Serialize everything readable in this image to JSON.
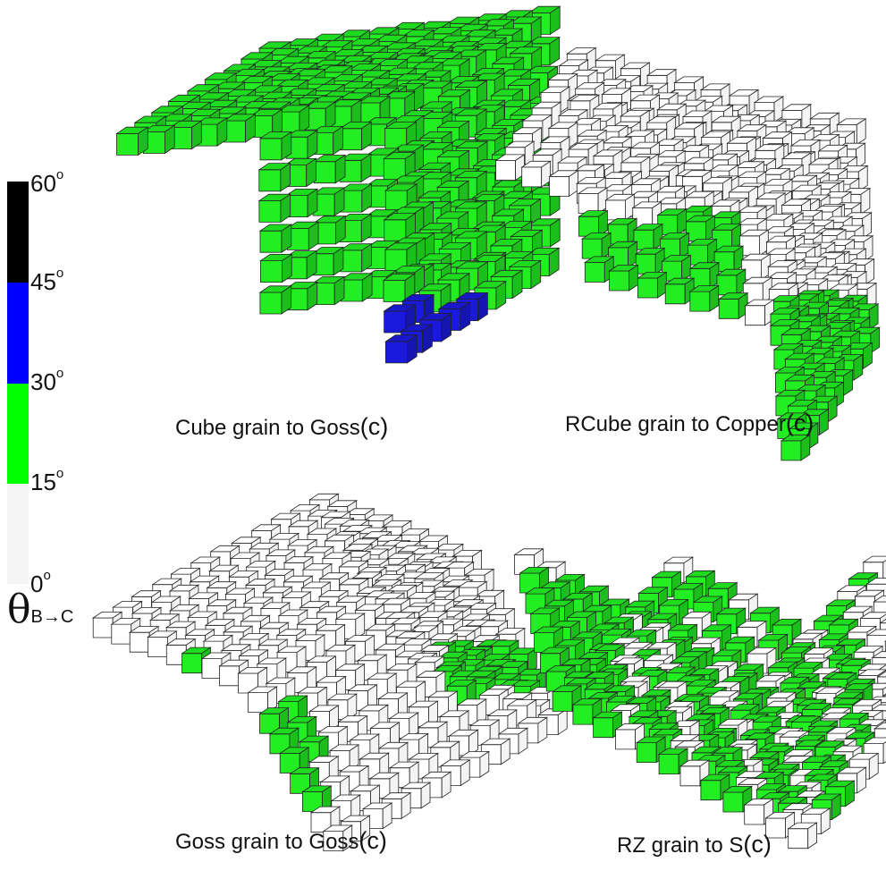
{
  "colorbar": {
    "label_symbol": "θ",
    "label_subscript": "B→C",
    "ticks": [
      {
        "value": "60",
        "unit": "o"
      },
      {
        "value": "45",
        "unit": "o"
      },
      {
        "value": "30",
        "unit": "o"
      },
      {
        "value": "15",
        "unit": "o"
      },
      {
        "value": "0",
        "unit": "o"
      }
    ],
    "segments": [
      {
        "range": "45-60",
        "color": "#000000"
      },
      {
        "range": "30-45",
        "color": "#0000ff"
      },
      {
        "range": "15-30",
        "color": "#00ff00"
      },
      {
        "range": "0-15",
        "color": "#f5f5f5"
      }
    ]
  },
  "panels": [
    {
      "id": "cube",
      "caption": "Cube grain to Goss",
      "suffix": "(c)"
    },
    {
      "id": "rcube",
      "caption": "RCube grain to Copper",
      "suffix": "(c)"
    },
    {
      "id": "goss",
      "caption": "Goss grain to Goss",
      "suffix": "(c)"
    },
    {
      "id": "rz",
      "caption": "RZ grain to S",
      "suffix": "(c)"
    }
  ],
  "colors": {
    "green": "#22ee22",
    "blue": "#1a1adc",
    "white": "#ffffff",
    "edge": "#222222"
  }
}
